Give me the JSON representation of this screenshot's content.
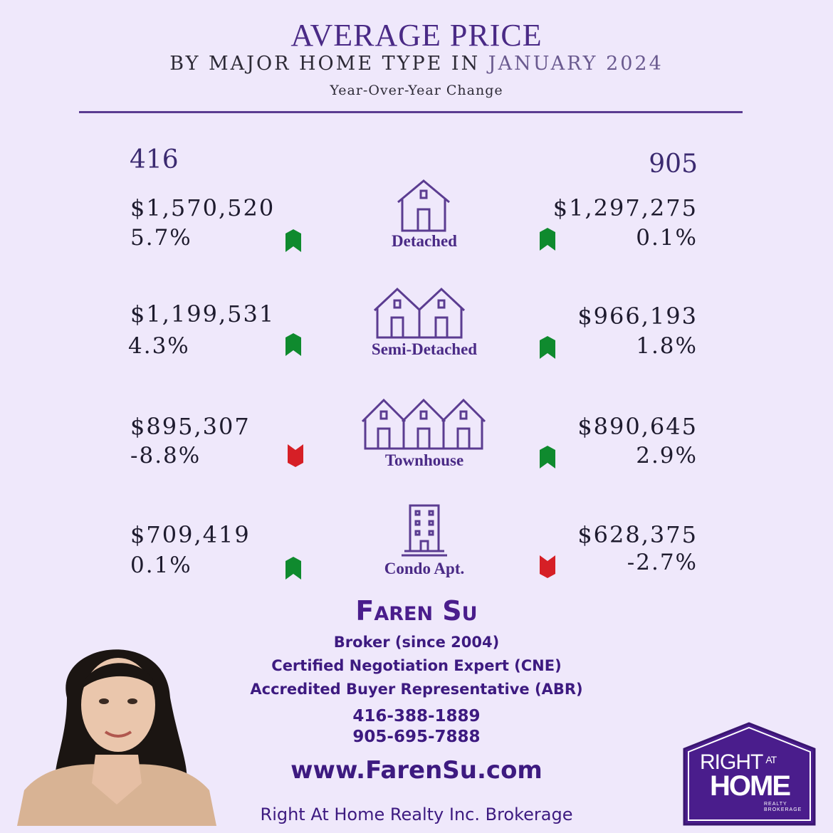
{
  "header": {
    "title": "AVERAGE PRICE",
    "subtitle_prefix": "BY MAJOR HOME TYPE IN",
    "subtitle_month": "JANUARY 2024",
    "change_label": "Year-Over-Year Change"
  },
  "regions": {
    "left": "416",
    "right": "905"
  },
  "colors": {
    "up": "#0f8a2e",
    "down": "#d61f26",
    "accent": "#4a2a86"
  },
  "home_types": [
    {
      "label": "Detached",
      "icon": "detached-house-icon",
      "left": {
        "price": "$1,570,520",
        "change": "5.7%",
        "direction": "up"
      },
      "right": {
        "price": "$1,297,275",
        "change": "0.1%",
        "direction": "up"
      }
    },
    {
      "label": "Semi-Detached",
      "icon": "semi-detached-house-icon",
      "left": {
        "price": "$1,199,531",
        "change": "4.3%",
        "direction": "up"
      },
      "right": {
        "price": "$966,193",
        "change": "1.8%",
        "direction": "up"
      }
    },
    {
      "label": "Townhouse",
      "icon": "townhouse-icon",
      "left": {
        "price": "$895,307",
        "change": "-8.8%",
        "direction": "down"
      },
      "right": {
        "price": "$890,645",
        "change": "2.9%",
        "direction": "up"
      }
    },
    {
      "label": "Condo Apt.",
      "icon": "condo-building-icon",
      "left": {
        "price": "$709,419",
        "change": "0.1%",
        "direction": "up"
      },
      "right": {
        "price": "$628,375",
        "change": "-2.7%",
        "direction": "down"
      }
    }
  ],
  "agent": {
    "name": "Faren Su",
    "title": "Broker (since 2004)",
    "cert1": "Certified Negotiation Expert (CNE)",
    "cert2": "Accredited Buyer Representative (ABR)",
    "phone1": "416-388-1889",
    "phone2": "905-695-7888",
    "website": "www.FarenSu.com",
    "brokerage": "Right At Home Realty Inc. Brokerage"
  },
  "logo": {
    "line1": "RIGHT",
    "line1_small": "AT",
    "line2": "HOME",
    "line3": "REALTY",
    "line4": "BROKERAGE"
  }
}
